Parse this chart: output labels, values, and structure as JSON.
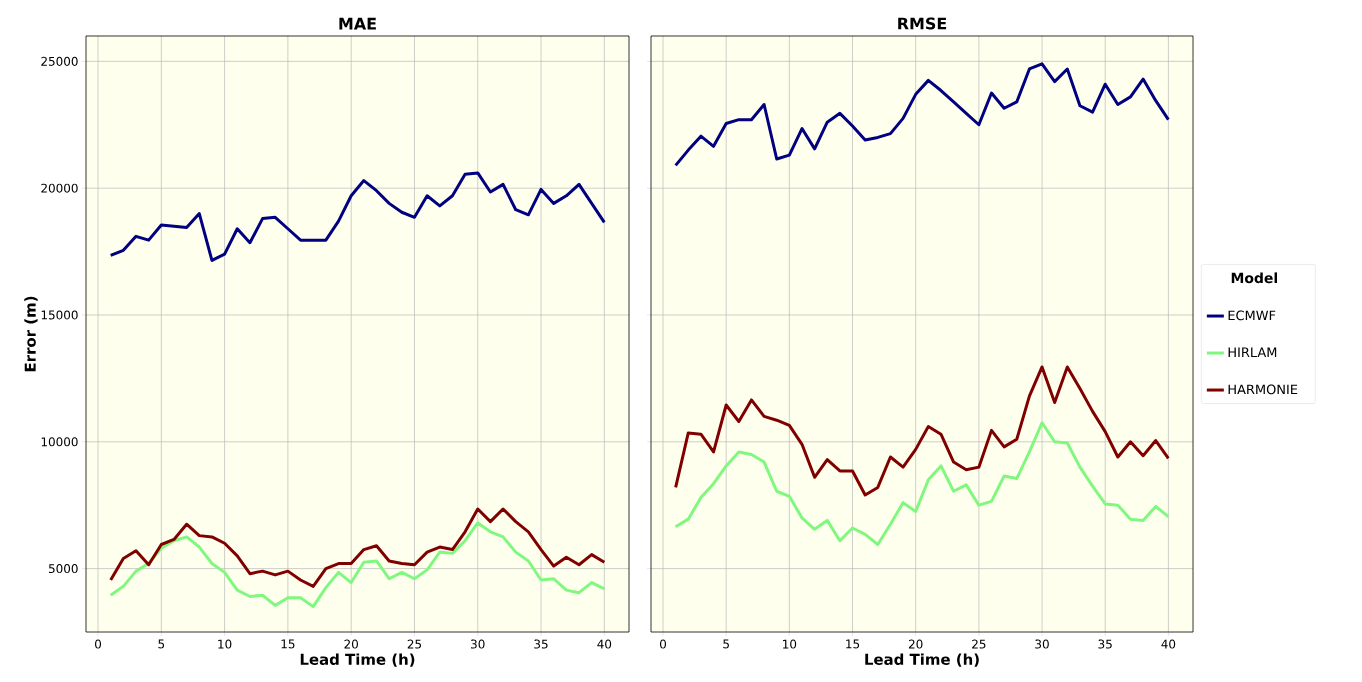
{
  "chart_data": [
    {
      "type": "line",
      "title": "MAE",
      "xlabel": "Lead Time (h)",
      "ylabel": "Error  (m)",
      "xlim": [
        -0.95,
        41.95
      ],
      "ylim": [
        2500,
        26000
      ],
      "xticks": [
        0,
        5,
        10,
        15,
        20,
        25,
        30,
        35,
        40
      ],
      "yticks": [
        5000,
        10000,
        15000,
        20000,
        25000
      ],
      "grid": true,
      "marker": "none",
      "line_style": "solid",
      "x": [
        1,
        2,
        3,
        4,
        5,
        6,
        7,
        8,
        9,
        10,
        11,
        12,
        13,
        14,
        15,
        16,
        17,
        18,
        19,
        20,
        21,
        22,
        23,
        24,
        25,
        26,
        27,
        28,
        29,
        30,
        31,
        32,
        33,
        34,
        35,
        36,
        37,
        38,
        39,
        40
      ],
      "series": [
        {
          "color": "#000080",
          "values": [
            17350,
            17550,
            18100,
            17950,
            18550,
            18500,
            18450,
            19000,
            17150,
            17400,
            18400,
            17850,
            18800,
            18850,
            18400,
            17950,
            17950,
            17950,
            18700,
            19700,
            20300,
            19900,
            19400,
            19050,
            18850,
            19700,
            19300,
            19700,
            20550,
            20600,
            19850,
            20150,
            19150,
            18950,
            19950,
            19400,
            19700,
            20150,
            19400,
            18650
          ]
        },
        {
          "color": "#80f880",
          "values": [
            3950,
            4300,
            4900,
            5200,
            5800,
            6100,
            6250,
            5850,
            5200,
            4850,
            4150,
            3900,
            3950,
            3550,
            3850,
            3850,
            3500,
            4250,
            4850,
            4450,
            5250,
            5300,
            4600,
            4850,
            4600,
            4950,
            5650,
            5600,
            6100,
            6800,
            6450,
            6250,
            5650,
            5300,
            4550,
            4600,
            4150,
            4050,
            4450,
            4200
          ]
        },
        {
          "color": "#800000",
          "values": [
            4550,
            5400,
            5700,
            5150,
            5950,
            6150,
            6750,
            6300,
            6250,
            6000,
            5500,
            4800,
            4900,
            4750,
            4900,
            4550,
            4300,
            5000,
            5200,
            5200,
            5750,
            5900,
            5300,
            5200,
            5150,
            5650,
            5850,
            5750,
            6450,
            7350,
            6850,
            7350,
            6850,
            6450,
            5750,
            5100,
            5450,
            5150,
            5550,
            5250
          ]
        }
      ]
    },
    {
      "type": "line",
      "title": "RMSE",
      "xlabel": "Lead Time (h)",
      "xlim": [
        -0.95,
        41.95
      ],
      "ylim": [
        2500,
        26000
      ],
      "xticks": [
        0,
        5,
        10,
        15,
        20,
        25,
        30,
        35,
        40
      ],
      "yticks": [
        5000,
        10000,
        15000,
        20000,
        25000
      ],
      "tick_labels": "x",
      "grid": true,
      "marker": "none",
      "line_style": "solid",
      "legend": "right",
      "legend_title": "Model",
      "x": [
        1,
        2,
        3,
        4,
        5,
        6,
        7,
        8,
        9,
        10,
        11,
        12,
        13,
        14,
        15,
        16,
        17,
        18,
        19,
        20,
        21,
        22,
        23,
        24,
        25,
        26,
        27,
        28,
        29,
        30,
        31,
        32,
        33,
        34,
        35,
        36,
        37,
        38,
        39,
        40
      ],
      "series": [
        {
          "name": "ECMWF",
          "color": "#000080",
          "values": [
            20900,
            21500,
            22050,
            21650,
            22550,
            22700,
            22700,
            23300,
            21150,
            21300,
            22350,
            21550,
            22600,
            22950,
            22450,
            21900,
            22000,
            22150,
            22750,
            23700,
            24250,
            23850,
            23400,
            22950,
            22500,
            23750,
            23150,
            23400,
            24700,
            24900,
            24200,
            24700,
            23250,
            23000,
            24100,
            23300,
            23600,
            24300,
            23450,
            22700
          ]
        },
        {
          "name": "HIRLAM",
          "color": "#80f880",
          "values": [
            6650,
            6950,
            7800,
            8350,
            9050,
            9600,
            9500,
            9200,
            8050,
            7850,
            7000,
            6550,
            6900,
            6100,
            6600,
            6350,
            5950,
            6750,
            7600,
            7250,
            8500,
            9050,
            8050,
            8300,
            7500,
            7650,
            8650,
            8550,
            9600,
            10750,
            10000,
            9950,
            9000,
            8250,
            7550,
            7500,
            6950,
            6900,
            7450,
            7050
          ]
        },
        {
          "name": "HARMONIE",
          "color": "#800000",
          "values": [
            8200,
            10350,
            10300,
            9600,
            11450,
            10800,
            11650,
            11000,
            10850,
            10650,
            9900,
            8600,
            9300,
            8850,
            8850,
            7900,
            8200,
            9400,
            9000,
            9700,
            10600,
            10300,
            9200,
            8900,
            9000,
            10450,
            9800,
            10100,
            11800,
            12950,
            11550,
            12950,
            12100,
            11200,
            10400,
            9400,
            10000,
            9450,
            10050,
            9350
          ]
        }
      ]
    }
  ]
}
